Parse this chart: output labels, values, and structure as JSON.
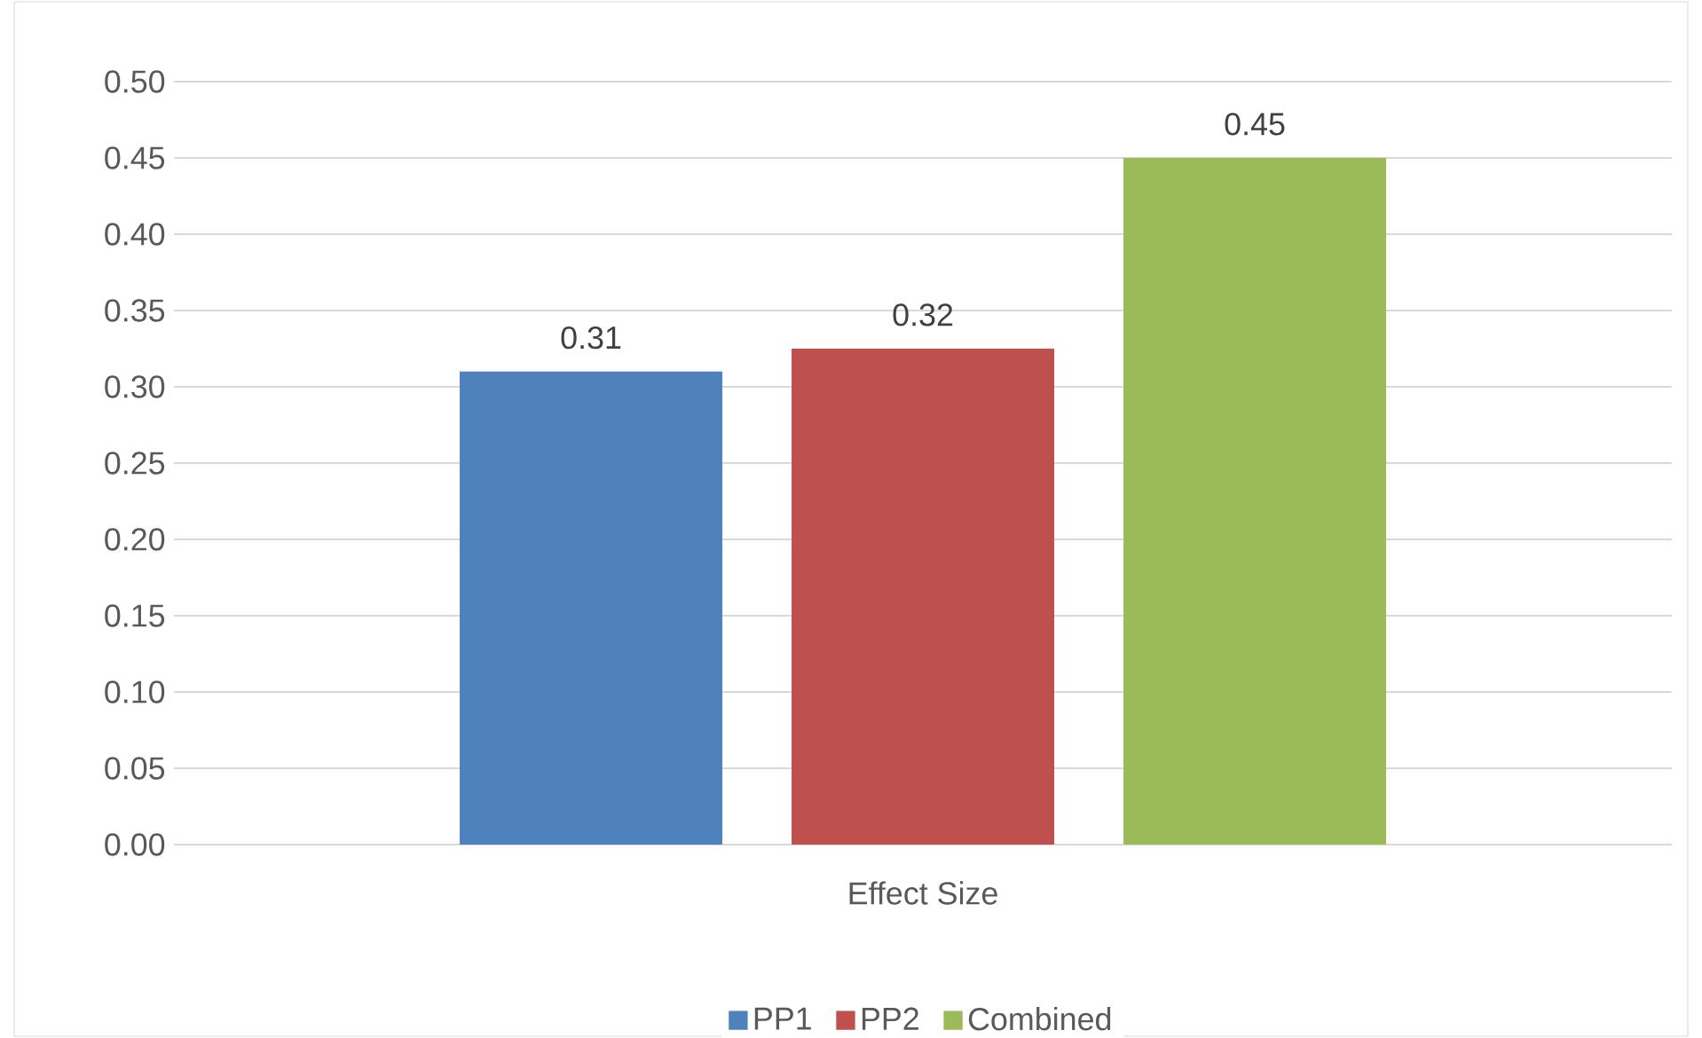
{
  "chart_data": {
    "type": "bar",
    "categories": [
      "Effect Size"
    ],
    "series": [
      {
        "name": "PP1",
        "color": "#4f81bd",
        "values": [
          0.31
        ],
        "value_labels": [
          "0.31"
        ]
      },
      {
        "name": "PP2",
        "color": "#c0504d",
        "values": [
          0.325
        ],
        "value_labels": [
          "0.32"
        ]
      },
      {
        "name": "Combined",
        "color": "#9bbb59",
        "values": [
          0.45
        ],
        "value_labels": [
          "0.45"
        ]
      }
    ],
    "ylim": [
      0,
      0.5
    ],
    "yticks": [
      {
        "value": 0,
        "label": "0.00"
      },
      {
        "value": 0.05,
        "label": "0.05"
      },
      {
        "value": 0.1,
        "label": "0.10"
      },
      {
        "value": 0.15,
        "label": "0.15"
      },
      {
        "value": 0.2,
        "label": "0.20"
      },
      {
        "value": 0.25,
        "label": "0.25"
      },
      {
        "value": 0.3,
        "label": "0.30"
      },
      {
        "value": 0.35,
        "label": "0.35"
      },
      {
        "value": 0.4,
        "label": "0.40"
      },
      {
        "value": 0.45,
        "label": "0.45"
      },
      {
        "value": 0.5,
        "label": "0.50"
      }
    ],
    "grid": "y",
    "legend": "bottom"
  }
}
